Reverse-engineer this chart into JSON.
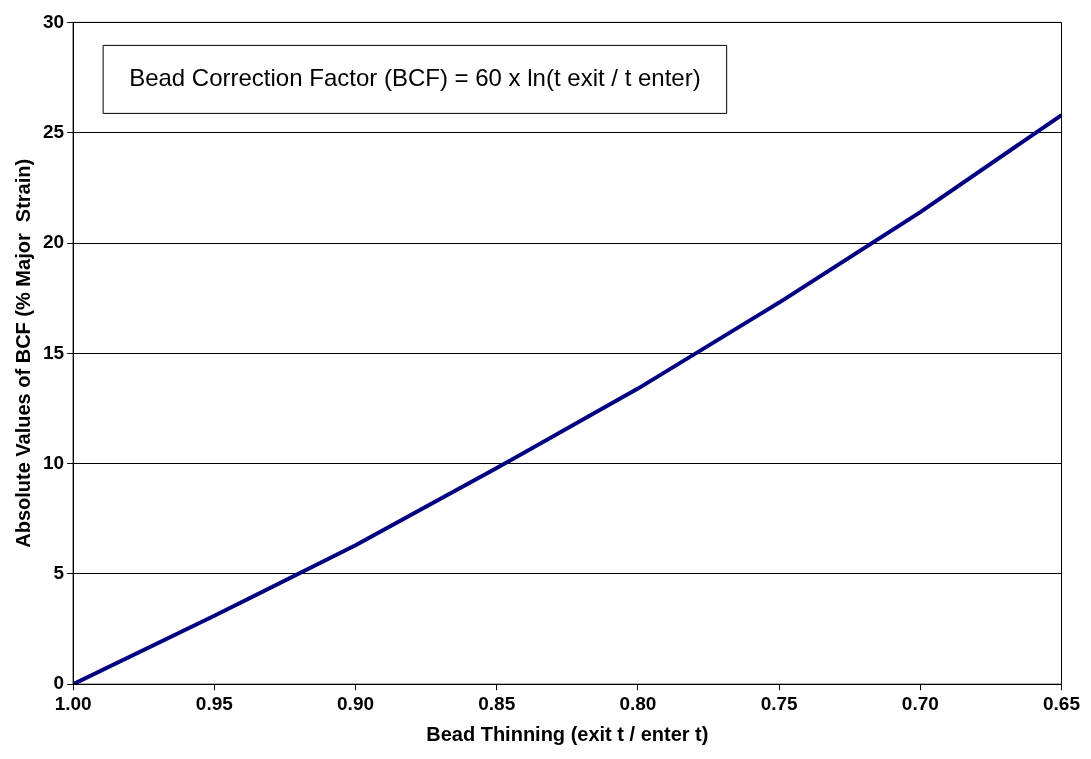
{
  "chart_data": {
    "type": "line",
    "xlabel": "Bead Thinning (exit t / enter t)",
    "ylabel": "Absolute Values of BCF (% Major  Strain)",
    "annotations": [
      "Bead Correction Factor (BCF) = 60 x ln(t exit / t enter)"
    ],
    "x": [
      1.0,
      0.95,
      0.9,
      0.85,
      0.8,
      0.75,
      0.7,
      0.65
    ],
    "series": [
      {
        "color": "#000080",
        "values": [
          0,
          3.1,
          6.3,
          9.8,
          13.4,
          17.3,
          21.4,
          25.8
        ]
      }
    ],
    "xlim": [
      1.0,
      0.65
    ],
    "xticks": [
      {
        "value": 1.0,
        "label": "1.00"
      },
      {
        "value": 0.95,
        "label": "0.95"
      },
      {
        "value": 0.9,
        "label": "0.90"
      },
      {
        "value": 0.85,
        "label": "0.85"
      },
      {
        "value": 0.8,
        "label": "0.80"
      },
      {
        "value": 0.75,
        "label": "0.75"
      },
      {
        "value": 0.7,
        "label": "0.70"
      },
      {
        "value": 0.65,
        "label": "0.65"
      }
    ],
    "ylim": [
      0,
      30
    ],
    "yticks": [
      0,
      5,
      10,
      15,
      20,
      25,
      30
    ],
    "grid": "y",
    "legend": false,
    "marker": "none",
    "line_style": "solid"
  }
}
